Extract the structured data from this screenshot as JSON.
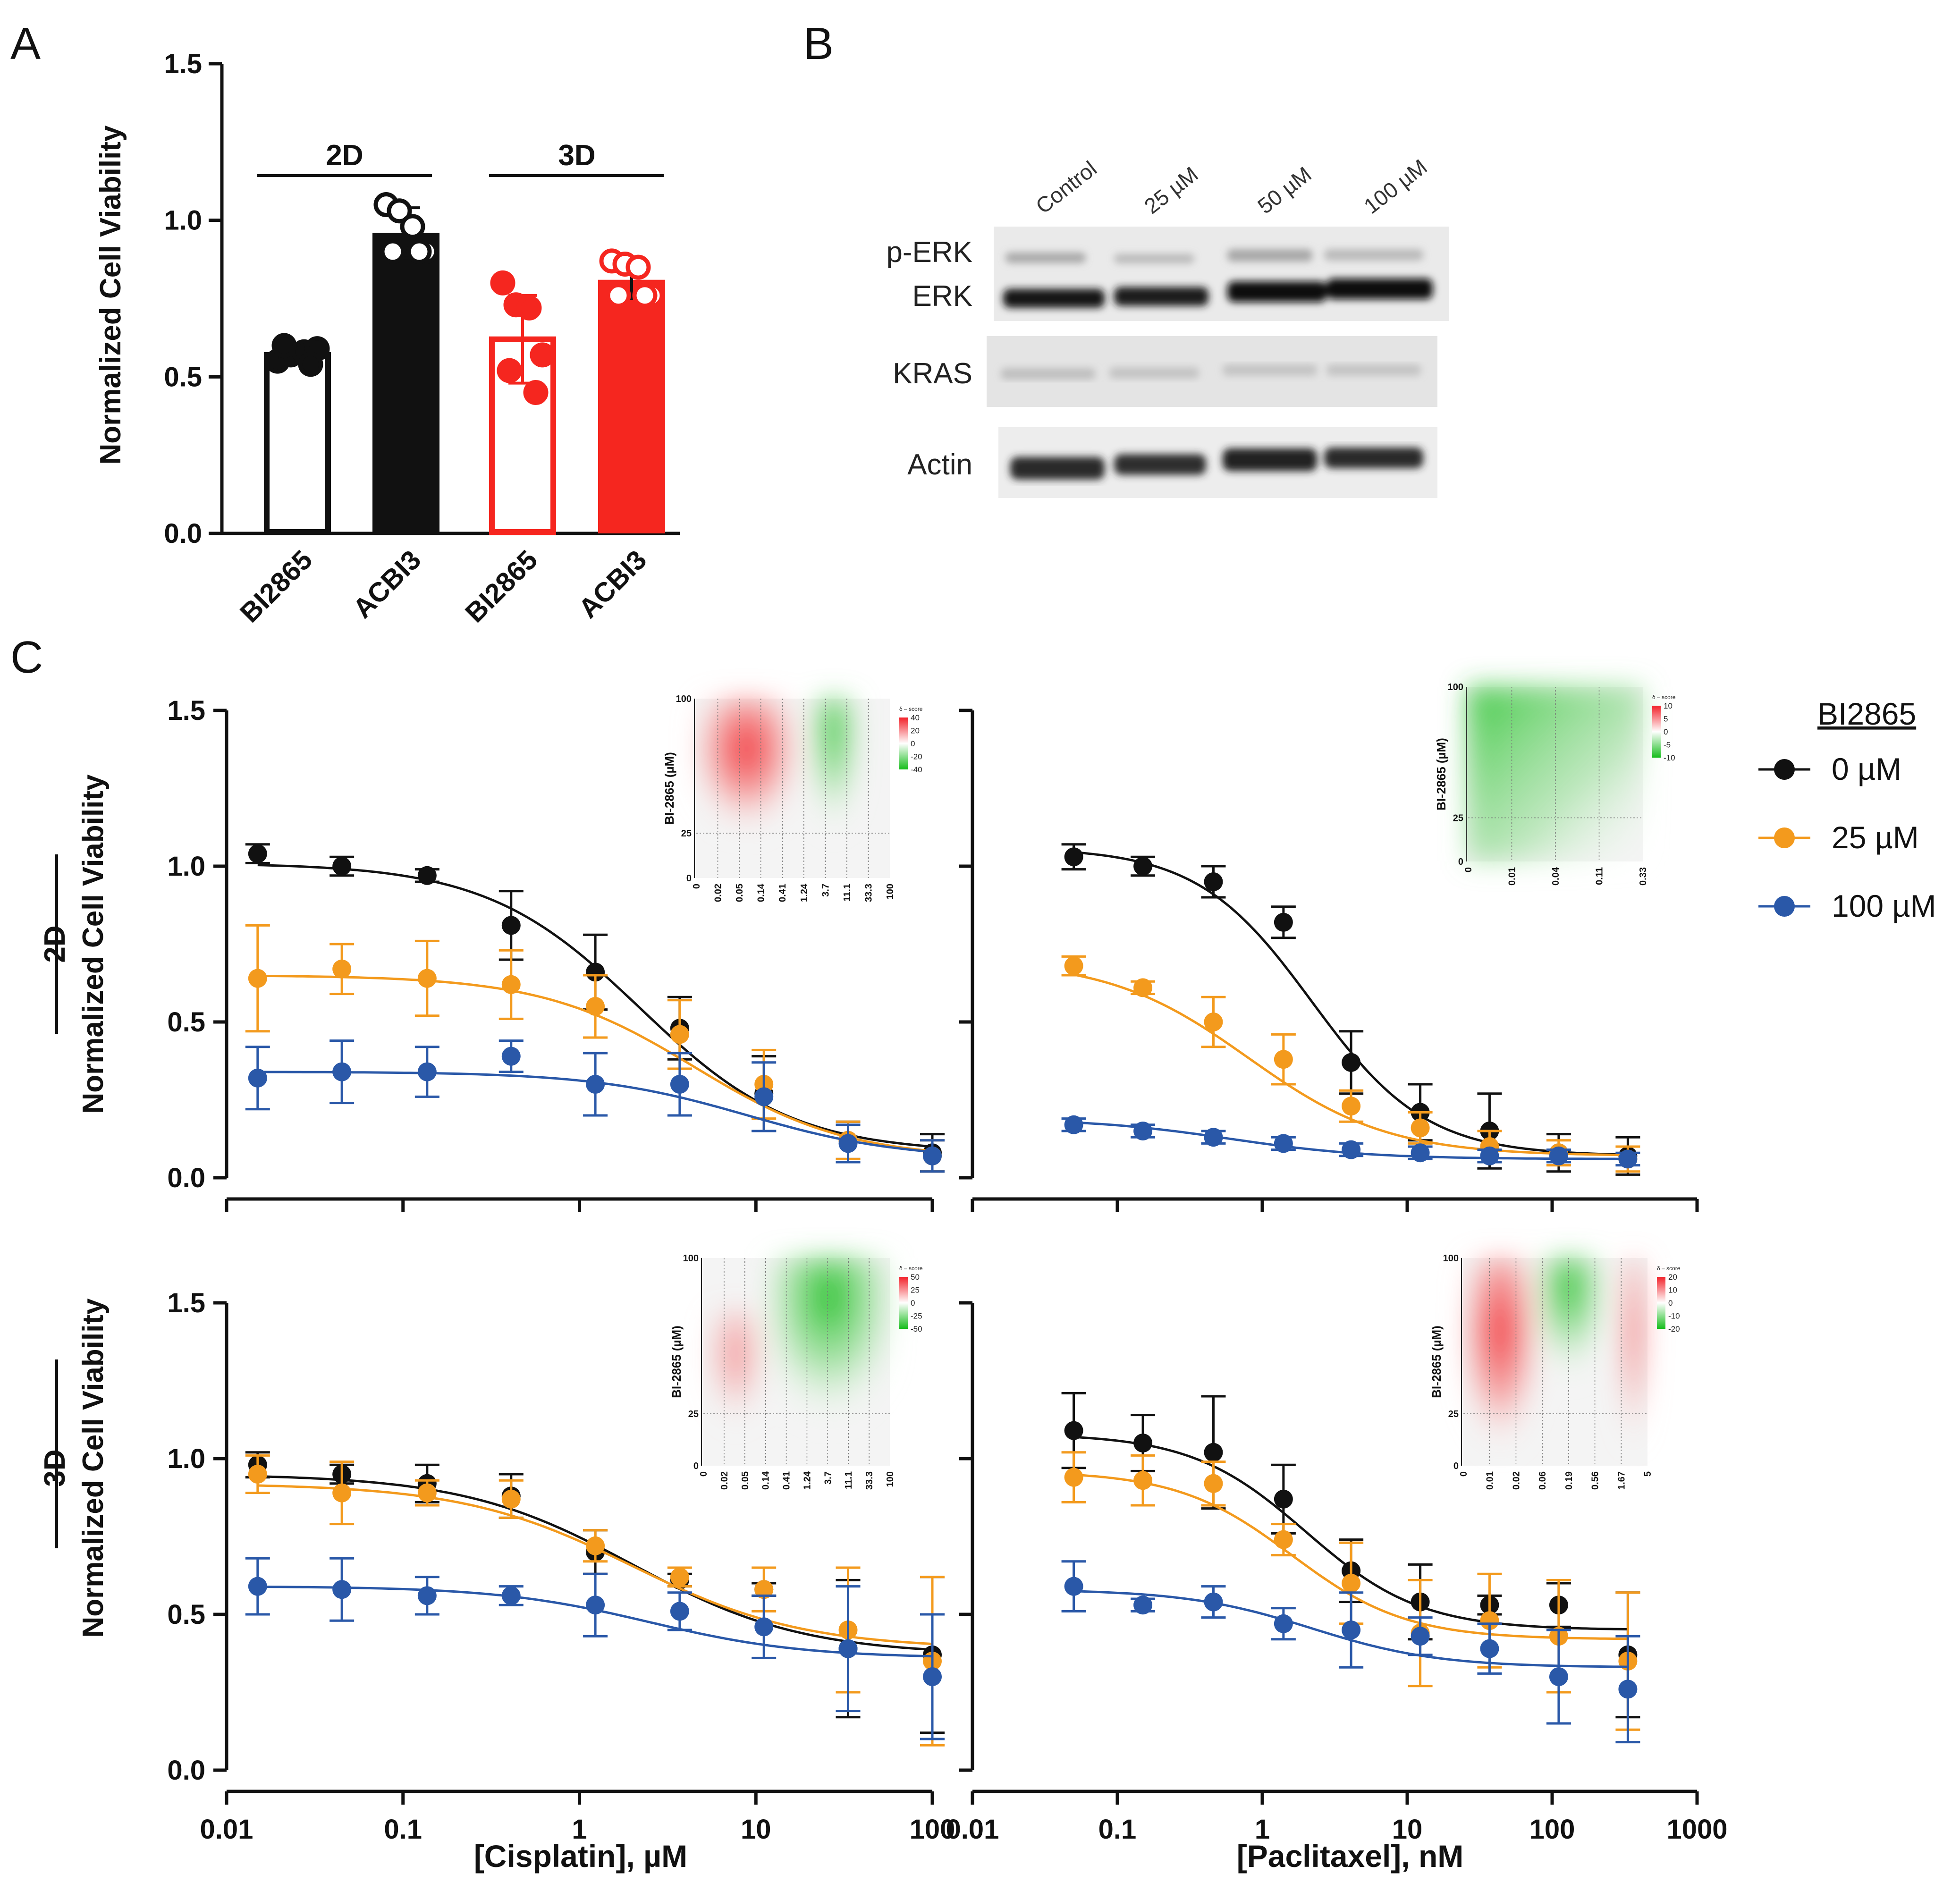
{
  "panel_letters": [
    "A",
    "B",
    "C"
  ],
  "colors": {
    "black": "#111111",
    "red": "#f5261f",
    "orange": "#f39a1d",
    "blue": "#2a58a8",
    "synergy_red": "#f2222a",
    "antagonism_green": "#16bd1c"
  },
  "chart_data": [
    {
      "id": "A",
      "type": "bar",
      "title": "",
      "ylabel": "Normalized Cell Viability",
      "ylim": [
        0,
        1.5
      ],
      "yticks": [
        "0.0",
        "0.5",
        "1.0",
        "1.5"
      ],
      "groups": [
        {
          "label": "2D",
          "categories": [
            0,
            1
          ]
        },
        {
          "label": "3D",
          "categories": [
            2,
            3
          ]
        }
      ],
      "categories": [
        "BI2865",
        "ACBI3",
        "BI2865",
        "ACBI3"
      ],
      "bars": [
        {
          "label": "BI2865",
          "group": "2D",
          "mean": 0.57,
          "sd": 0.02,
          "fill": "white",
          "color": "#111111",
          "points": [
            0.55,
            0.57,
            0.58,
            0.59,
            0.6,
            0.54
          ]
        },
        {
          "label": "ACBI3",
          "group": "2D",
          "mean": 0.96,
          "sd": 0.08,
          "fill": "solid",
          "color": "#111111",
          "points": [
            1.05,
            1.03,
            0.98,
            0.9,
            0.9,
            0.9
          ]
        },
        {
          "label": "BI2865",
          "group": "3D",
          "mean": 0.62,
          "sd": 0.14,
          "fill": "white",
          "color": "#f5261f",
          "points": [
            0.8,
            0.73,
            0.72,
            0.57,
            0.52,
            0.45
          ]
        },
        {
          "label": "ACBI3",
          "group": "3D",
          "mean": 0.81,
          "sd": 0.06,
          "fill": "solid",
          "color": "#f5261f",
          "points": [
            0.87,
            0.86,
            0.85,
            0.76,
            0.76,
            0.76
          ]
        }
      ]
    },
    {
      "id": "C-2D-cisplatin",
      "type": "line",
      "ylabel": "Normalized Cell Viability",
      "row_label": "2D",
      "xscale": "log",
      "xlim": [
        0.01,
        100
      ],
      "ylim": [
        0,
        1.5
      ],
      "yticks": [
        "0.0",
        "0.5",
        "1.0",
        "1.5"
      ],
      "x": [
        0.015,
        0.045,
        0.137,
        0.41,
        1.23,
        3.7,
        11.1,
        33.3,
        100
      ],
      "series": [
        {
          "name": "0 µM",
          "color": "#111111",
          "fit": {
            "top": 1.01,
            "bottom": 0.08,
            "ec50": 2.2,
            "hill": 1.0
          },
          "values": [
            1.04,
            1.0,
            0.97,
            0.81,
            0.66,
            0.48,
            0.27,
            0.12,
            0.08
          ],
          "errors": [
            0.03,
            0.03,
            0.02,
            0.11,
            0.12,
            0.1,
            0.12,
            0.06,
            0.06
          ]
        },
        {
          "name": "25 µM",
          "color": "#f39a1d",
          "fit": {
            "top": 0.65,
            "bottom": 0.06,
            "ec50": 4.5,
            "hill": 1.0
          },
          "values": [
            0.64,
            0.67,
            0.64,
            0.62,
            0.55,
            0.46,
            0.3,
            0.12,
            0.07
          ],
          "errors": [
            0.17,
            0.08,
            0.12,
            0.11,
            0.1,
            0.11,
            0.11,
            0.06,
            0.05
          ]
        },
        {
          "name": "100 µM",
          "color": "#2a58a8",
          "fit": {
            "top": 0.34,
            "bottom": 0.06,
            "ec50": 9.0,
            "hill": 1.0
          },
          "values": [
            0.32,
            0.34,
            0.34,
            0.39,
            0.3,
            0.3,
            0.26,
            0.11,
            0.07
          ],
          "errors": [
            0.1,
            0.1,
            0.08,
            0.05,
            0.1,
            0.1,
            0.11,
            0.06,
            0.05
          ]
        }
      ],
      "inset": {
        "type": "heatmap",
        "ylabel": "BI-2865 (µM)",
        "xticks": [
          "0",
          "0.02",
          "0.05",
          "0.14",
          "0.41",
          "1.24",
          "3.7",
          "11.1",
          "33.3",
          "100"
        ],
        "yticks": [
          "0",
          "25",
          "100"
        ],
        "colorbar": {
          "title": "δ – score",
          "ticks": [
            "40",
            "20",
            "0",
            "-20",
            "-40"
          ]
        }
      }
    },
    {
      "id": "C-2D-paclitaxel",
      "type": "line",
      "xscale": "log",
      "xlim": [
        0.01,
        1000
      ],
      "ylim": [
        0,
        1.5
      ],
      "x": [
        0.05,
        0.15,
        0.46,
        1.4,
        4.1,
        12.3,
        37,
        111,
        333
      ],
      "series": [
        {
          "name": "0 µM",
          "color": "#111111",
          "fit": {
            "top": 1.06,
            "bottom": 0.07,
            "ec50": 2.2,
            "hill": 1.1
          },
          "values": [
            1.03,
            1.0,
            0.95,
            0.82,
            0.37,
            0.21,
            0.15,
            0.08,
            0.07
          ],
          "errors": [
            0.04,
            0.03,
            0.05,
            0.05,
            0.1,
            0.09,
            0.12,
            0.06,
            0.06
          ]
        },
        {
          "name": "25 µM",
          "color": "#f39a1d",
          "fit": {
            "top": 0.7,
            "bottom": 0.07,
            "ec50": 0.8,
            "hill": 0.9
          },
          "values": [
            0.68,
            0.61,
            0.5,
            0.38,
            0.23,
            0.16,
            0.1,
            0.08,
            0.06
          ],
          "errors": [
            0.03,
            0.02,
            0.08,
            0.08,
            0.05,
            0.05,
            0.05,
            0.04,
            0.04
          ]
        },
        {
          "name": "100 µM",
          "color": "#2a58a8",
          "fit": {
            "top": 0.19,
            "bottom": 0.06,
            "ec50": 0.6,
            "hill": 0.9
          },
          "values": [
            0.17,
            0.15,
            0.13,
            0.11,
            0.09,
            0.08,
            0.07,
            0.07,
            0.06
          ],
          "errors": [
            0.02,
            0.02,
            0.02,
            0.02,
            0.02,
            0.02,
            0.02,
            0.02,
            0.02
          ]
        }
      ],
      "inset": {
        "type": "heatmap",
        "ylabel": "BI-2865 (µM)",
        "xticks": [
          "0",
          "0.01",
          "0.04",
          "0.11",
          "0.33"
        ],
        "yticks": [
          "0",
          "25",
          "100"
        ],
        "colorbar": {
          "title": "δ – score",
          "ticks": [
            "10",
            "5",
            "0",
            "-5",
            "-10"
          ]
        }
      }
    },
    {
      "id": "C-3D-cisplatin",
      "type": "line",
      "ylabel": "Normalized Cell Viability",
      "row_label": "3D",
      "xlabel": "[Cisplatin], µM",
      "xscale": "log",
      "xlim": [
        0.01,
        100
      ],
      "ylim": [
        0,
        1.5
      ],
      "xticks": [
        "0.01",
        "0.1",
        "1",
        "10",
        "100"
      ],
      "yticks": [
        "0.0",
        "0.5",
        "1.0",
        "1.5"
      ],
      "x": [
        0.015,
        0.045,
        0.137,
        0.41,
        1.23,
        3.7,
        11.1,
        33.3,
        100
      ],
      "series": [
        {
          "name": "0 µM",
          "color": "#111111",
          "fit": {
            "top": 0.95,
            "bottom": 0.37,
            "ec50": 2.0,
            "hill": 0.9
          },
          "values": [
            0.98,
            0.95,
            0.92,
            0.88,
            0.7,
            0.61,
            0.58,
            0.39,
            0.37
          ],
          "errors": [
            0.04,
            0.03,
            0.06,
            0.07,
            0.07,
            0.02,
            0.02,
            0.22,
            0.25
          ]
        },
        {
          "name": "25 µM",
          "color": "#f39a1d",
          "fit": {
            "top": 0.92,
            "bottom": 0.39,
            "ec50": 2.0,
            "hill": 0.9
          },
          "values": [
            0.95,
            0.89,
            0.89,
            0.87,
            0.72,
            0.62,
            0.58,
            0.45,
            0.35
          ],
          "errors": [
            0.06,
            0.1,
            0.04,
            0.06,
            0.05,
            0.03,
            0.07,
            0.2,
            0.27
          ]
        },
        {
          "name": "100 µM",
          "color": "#2a58a8",
          "fit": {
            "top": 0.59,
            "bottom": 0.36,
            "ec50": 2.5,
            "hill": 1.0
          },
          "values": [
            0.59,
            0.58,
            0.56,
            0.56,
            0.53,
            0.51,
            0.46,
            0.39,
            0.3
          ],
          "errors": [
            0.09,
            0.1,
            0.06,
            0.03,
            0.1,
            0.06,
            0.1,
            0.2,
            0.2
          ]
        }
      ],
      "inset": {
        "type": "heatmap",
        "ylabel": "BI-2865 (µM)",
        "xticks": [
          "0",
          "0.02",
          "0.05",
          "0.14",
          "0.41",
          "1.24",
          "3.7",
          "11.1",
          "33.3",
          "100"
        ],
        "yticks": [
          "0",
          "25",
          "100"
        ],
        "colorbar": {
          "title": "δ – score",
          "ticks": [
            "50",
            "25",
            "0",
            "-25",
            "-50"
          ]
        }
      }
    },
    {
      "id": "C-3D-paclitaxel",
      "type": "line",
      "xlabel": "[Paclitaxel], nM",
      "xscale": "log",
      "xlim": [
        0.01,
        1000
      ],
      "ylim": [
        0,
        1.5
      ],
      "xticks": [
        "0.01",
        "0.1",
        "1",
        "10",
        "100",
        "1000"
      ],
      "x": [
        0.05,
        0.15,
        0.46,
        1.4,
        4.1,
        12.3,
        37,
        111,
        333
      ],
      "series": [
        {
          "name": "0 µM",
          "color": "#111111",
          "fit": {
            "top": 1.08,
            "bottom": 0.45,
            "ec50": 2.0,
            "hill": 1.1
          },
          "values": [
            1.09,
            1.05,
            1.02,
            0.87,
            0.64,
            0.54,
            0.53,
            0.53,
            0.37
          ],
          "errors": [
            0.12,
            0.09,
            0.18,
            0.11,
            0.1,
            0.12,
            0.03,
            0.07,
            0.2
          ]
        },
        {
          "name": "25 µM",
          "color": "#f39a1d",
          "fit": {
            "top": 0.96,
            "bottom": 0.42,
            "ec50": 1.6,
            "hill": 1.1
          },
          "values": [
            0.94,
            0.93,
            0.92,
            0.74,
            0.6,
            0.44,
            0.48,
            0.43,
            0.35
          ],
          "errors": [
            0.08,
            0.08,
            0.07,
            0.05,
            0.13,
            0.17,
            0.15,
            0.18,
            0.22
          ]
        },
        {
          "name": "100 µM",
          "color": "#2a58a8",
          "fit": {
            "top": 0.58,
            "bottom": 0.33,
            "ec50": 2.2,
            "hill": 1.0
          },
          "values": [
            0.59,
            0.53,
            0.54,
            0.47,
            0.45,
            0.43,
            0.39,
            0.3,
            0.26
          ],
          "errors": [
            0.08,
            0.02,
            0.05,
            0.05,
            0.12,
            0.06,
            0.08,
            0.15,
            0.17
          ]
        }
      ],
      "inset": {
        "type": "heatmap",
        "ylabel": "BI-2865 (µM)",
        "xticks": [
          "0",
          "0.01",
          "0.02",
          "0.06",
          "0.19",
          "0.56",
          "1.67",
          "5"
        ],
        "yticks": [
          "0",
          "25",
          "100"
        ],
        "colorbar": {
          "title": "δ – score",
          "ticks": [
            "20",
            "10",
            "0",
            "-10",
            "-20"
          ]
        }
      }
    }
  ],
  "blot": {
    "treatments": [
      "Control",
      "25 µM",
      "50 µM",
      "100 µM"
    ],
    "rows": [
      "p-ERK",
      "ERK",
      "KRAS",
      "Actin"
    ]
  },
  "legend": {
    "title": "BI2865",
    "items": [
      {
        "label": "0 µM",
        "color": "#111111"
      },
      {
        "label": "25 µM",
        "color": "#f39a1d"
      },
      {
        "label": "100 µM",
        "color": "#2a58a8"
      }
    ]
  }
}
